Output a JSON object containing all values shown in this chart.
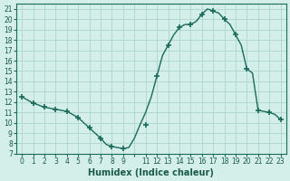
{
  "xlabel": "Humidex (Indice chaleur)",
  "ylabel": "",
  "background_color": "#d4eeea",
  "grid_color": "#b0d8d2",
  "line_color": "#1a6b5a",
  "marker_color": "#1a6b5a",
  "xlim": [
    -0.5,
    23.5
  ],
  "ylim": [
    7,
    21.5
  ],
  "x_labels": [
    "0",
    "1",
    "2",
    "3",
    "4",
    "5",
    "6",
    "7",
    "8",
    "9",
    "",
    "11",
    "12",
    "13",
    "14",
    "15",
    "16",
    "17",
    "18",
    "19",
    "20",
    "21",
    "22",
    "23"
  ],
  "y_ticks": [
    7,
    8,
    9,
    10,
    11,
    12,
    13,
    14,
    15,
    16,
    17,
    18,
    19,
    20,
    21
  ],
  "hours": [
    0,
    0.5,
    1,
    1.5,
    2,
    2.5,
    3,
    3.5,
    4,
    4.5,
    5,
    5.5,
    6,
    6.5,
    7,
    7.5,
    8,
    8.5,
    9,
    9.5,
    10,
    10.5,
    11,
    11.5,
    12,
    12.5,
    13,
    13.5,
    14,
    14.5,
    15,
    15.5,
    16,
    16.5,
    17,
    17.5,
    18,
    18.5,
    19,
    19.5,
    20,
    20.5,
    21,
    21.5,
    22,
    22.5,
    23
  ],
  "values": [
    12.5,
    12.2,
    11.9,
    11.7,
    11.5,
    11.4,
    11.3,
    11.2,
    11.1,
    10.8,
    10.5,
    10.0,
    9.5,
    9.0,
    8.5,
    7.9,
    7.7,
    7.6,
    7.5,
    7.6,
    8.5,
    9.8,
    11.0,
    12.5,
    14.5,
    16.5,
    17.5,
    18.5,
    19.2,
    19.5,
    19.5,
    19.8,
    20.5,
    21.0,
    20.8,
    20.6,
    20.0,
    19.5,
    18.5,
    17.5,
    15.2,
    14.8,
    11.2,
    11.1,
    11.0,
    10.8,
    10.3
  ],
  "marker_hours": [
    0,
    1,
    2,
    3,
    4,
    5,
    6,
    7,
    8,
    9,
    11,
    12,
    13,
    14,
    15,
    16,
    17,
    18,
    19,
    20,
    21,
    22,
    23
  ],
  "marker_values": [
    12.5,
    11.9,
    11.5,
    11.3,
    11.1,
    10.5,
    9.5,
    8.5,
    7.7,
    7.5,
    9.8,
    14.5,
    17.5,
    19.2,
    19.5,
    20.5,
    20.8,
    20.0,
    18.5,
    15.2,
    11.2,
    11.0,
    10.3
  ]
}
